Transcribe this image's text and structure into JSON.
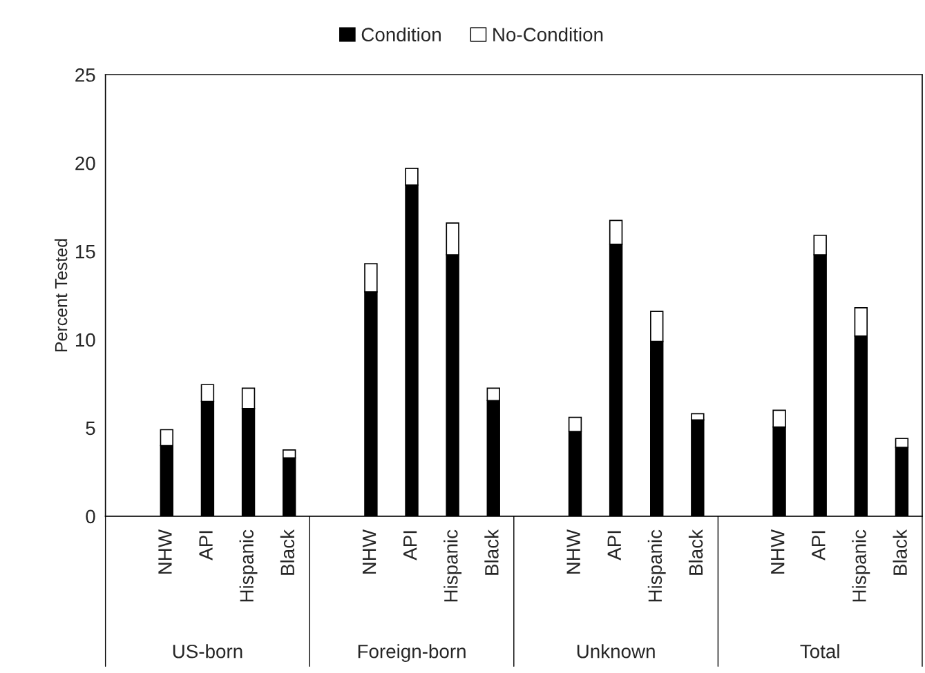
{
  "chart_data": {
    "type": "bar",
    "stacked": true,
    "ylabel": "Percent Tested",
    "categories": [
      null,
      "NHW",
      "API",
      "Hispanic",
      "Black",
      null,
      "NHW",
      "API",
      "Hispanic",
      "Black",
      null,
      "NHW",
      "API",
      "Hispanic",
      "Black",
      null,
      "NHW",
      "API",
      "Hispanic",
      "Black"
    ],
    "series": [
      {
        "name": "Condition",
        "color": "#000000",
        "values": [
          null,
          4.0,
          6.5,
          6.1,
          3.3,
          null,
          12.7,
          18.75,
          14.8,
          6.55,
          null,
          4.8,
          15.4,
          9.9,
          5.45,
          null,
          5.05,
          14.8,
          10.2,
          3.9
        ]
      },
      {
        "name": "No-Condition",
        "color": "#ffffff",
        "values": [
          null,
          0.9,
          0.95,
          1.15,
          0.45,
          null,
          1.6,
          0.95,
          1.8,
          0.7,
          null,
          0.8,
          1.35,
          1.7,
          0.35,
          null,
          0.95,
          1.1,
          1.6,
          0.5
        ]
      }
    ],
    "annotations": [
      "US-born",
      "Foreign-born",
      "Unknown",
      "Total"
    ],
    "ylim": [
      0,
      25
    ],
    "yticks": [
      0,
      5,
      10,
      15,
      20,
      25
    ],
    "grid": false,
    "legend": "top"
  }
}
